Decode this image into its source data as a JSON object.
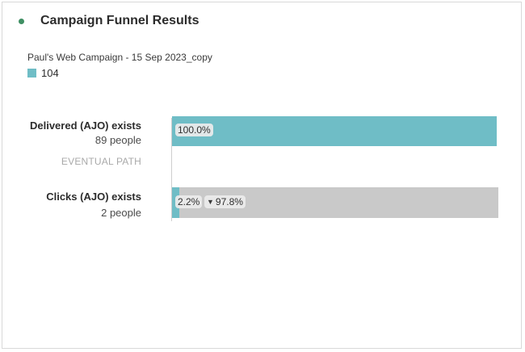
{
  "panel": {
    "title": "Campaign Funnel Results",
    "status_color": "#3f8f63"
  },
  "segment": {
    "name": "Paul's Web Campaign - 15 Sep 2023_copy",
    "count": "104",
    "color": "#6fbdc6"
  },
  "funnel": {
    "eventual_path_label": "EVENTUAL PATH",
    "steps": [
      {
        "name": "Delivered (AJO) exists",
        "people": "89 people",
        "percent_label": "100.0%",
        "fill_fraction": 1.0
      },
      {
        "name": "Clicks (AJO) exists",
        "people": "2 people",
        "percent_label": "2.2%",
        "dropoff_label": "97.8%",
        "fill_fraction": 0.022
      }
    ]
  }
}
